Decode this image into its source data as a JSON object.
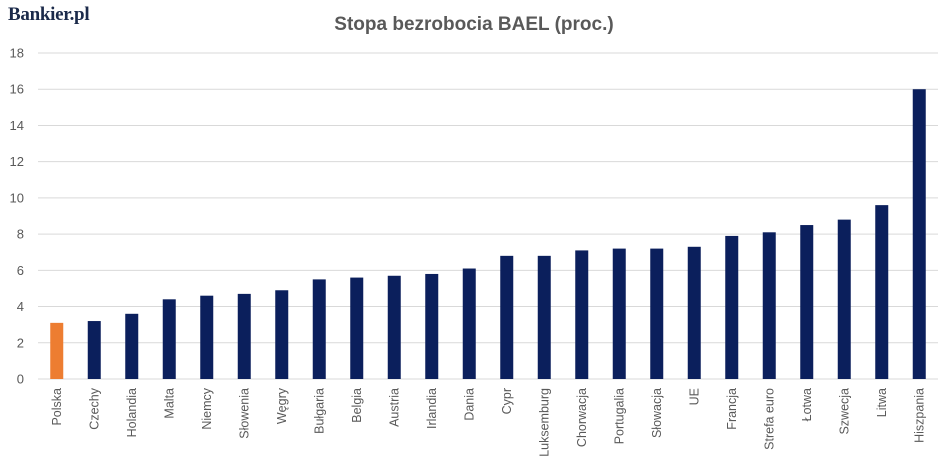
{
  "brand": {
    "logo_text": "Bankier.pl"
  },
  "colors": {
    "bar": "#0b1f5c",
    "highlight": "#ed7d31",
    "grid": "#d9d9d9",
    "text": "#595959"
  },
  "chart_data": {
    "type": "bar",
    "title": "Stopa bezrobocia BAEL (proc.)",
    "xlabel": "",
    "ylabel": "",
    "ylim": [
      0,
      18
    ],
    "yticks": [
      0,
      2,
      4,
      6,
      8,
      10,
      12,
      14,
      16,
      18
    ],
    "grid": true,
    "legend": "none",
    "highlight_category": "Polska",
    "categories": [
      "Polska",
      "Czechy",
      "Holandia",
      "Malta",
      "Niemcy",
      "Słowenia",
      "Węgry",
      "Bułgaria",
      "Belgia",
      "Austria",
      "Irlandia",
      "Dania",
      "Cypr",
      "Luksemburg",
      "Chorwacja",
      "Portugalia",
      "Słowacja",
      "UE",
      "Francja",
      "Strefa euro",
      "Łotwa",
      "Szwecja",
      "Litwa",
      "Hiszpania"
    ],
    "values": [
      3.1,
      3.2,
      3.6,
      4.4,
      4.6,
      4.7,
      4.9,
      5.5,
      5.6,
      5.7,
      5.8,
      6.1,
      6.8,
      6.8,
      7.1,
      7.2,
      7.2,
      7.3,
      7.9,
      8.1,
      8.5,
      8.8,
      9.6,
      16.0
    ]
  }
}
